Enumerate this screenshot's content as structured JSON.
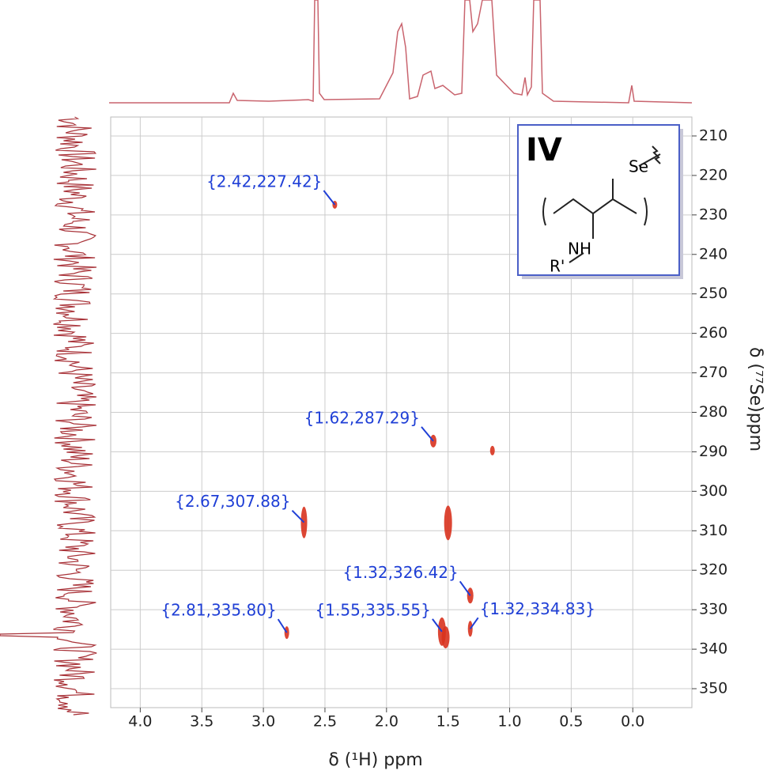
{
  "chart_data": {
    "type": "scatter",
    "x_label": "δ (¹H) ppm",
    "y_label": "δ (⁷⁷Se)ppm",
    "xlim": [
      4.24,
      -0.48
    ],
    "ylim": [
      205.2,
      354.8
    ],
    "xticks": [
      {
        "value": 4,
        "label": "4.0"
      },
      3.5,
      {
        "value": 3,
        "label": "3.0"
      },
      2.5,
      {
        "value": 2,
        "label": "2.0"
      },
      1.5,
      {
        "value": 1,
        "label": "1.0"
      },
      0.5,
      {
        "value": 0,
        "label": "0.0"
      }
    ],
    "yticks": [
      210,
      220,
      230,
      240,
      250,
      260,
      270,
      280,
      290,
      300,
      310,
      320,
      330,
      340,
      350
    ],
    "grid": true,
    "label_color": "#1f3fd6",
    "series": [
      {
        "color": "#d8321e",
        "x": [
          2.42,
          1.62,
          2.67,
          1.32,
          2.81,
          1.55,
          1.32
        ],
        "values": [
          227.42,
          287.29,
          307.88,
          326.42,
          335.8,
          335.55,
          334.83
        ],
        "value_labels": [
          "{2.42,227.42}",
          "{1.62,287.29}",
          "{2.67,307.88}",
          "{1.32,326.42}",
          "{2.81,335.80}",
          "{1.55,335.55}",
          "{1.32,334.83}"
        ]
      },
      {
        "color": "#d8321e",
        "x": [
          1.5,
          1.14,
          1.52
        ],
        "values": [
          308,
          289.7,
          337
        ]
      }
    ],
    "annotations": [
      "IV",
      "Se",
      "NH",
      "R'"
    ]
  }
}
